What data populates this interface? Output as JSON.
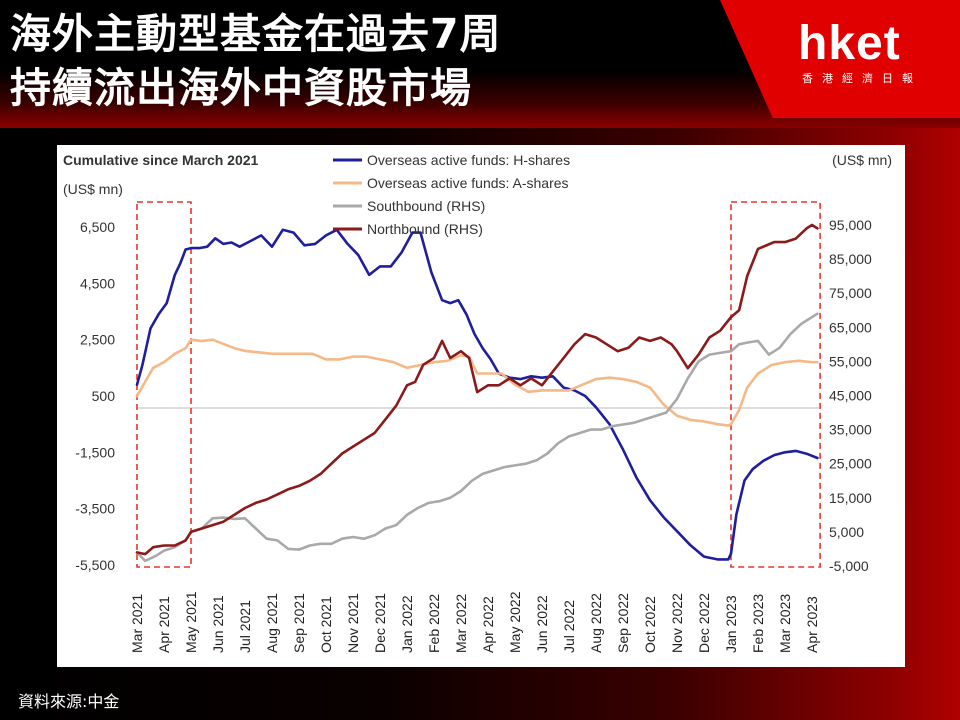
{
  "header": {
    "title_line1": "海外主動型基金在過去7周",
    "title_line2": "持續流出海外中資股市場",
    "logo_text": "hket",
    "logo_subtext": "香港經濟日報"
  },
  "footer": {
    "source": "資料來源:中金"
  },
  "chart_data": {
    "type": "line",
    "title": "Cumulative since March 2021",
    "left_axis_unit": "(US$ mn)",
    "right_axis_unit": "(US$ mn)",
    "left_ylim": [
      -5500,
      7200
    ],
    "right_ylim": [
      -5000,
      100000
    ],
    "left_ticks": [
      6500,
      4500,
      2500,
      500,
      -1500,
      -3500,
      -5500
    ],
    "left_tick_labels": [
      "6,500",
      "4,500",
      "2,500",
      "500",
      "-1,500",
      "-3,500",
      "-5,500"
    ],
    "right_ticks": [
      95000,
      85000,
      75000,
      65000,
      55000,
      45000,
      35000,
      25000,
      15000,
      5000,
      -5000
    ],
    "right_tick_labels": [
      "95,000",
      "85,000",
      "75,000",
      "65,000",
      "55,000",
      "45,000",
      "35,000",
      "25,000",
      "15,000",
      "5,000",
      "-5,000"
    ],
    "x_tick_labels": [
      "Mar 2021",
      "Apr 2021",
      "May 2021",
      "Jun 2021",
      "Jul 2021",
      "Aug 2021",
      "Sep 2021",
      "Oct 2021",
      "Nov 2021",
      "Dec 2021",
      "Jan 2022",
      "Feb 2022",
      "Mar 2022",
      "Apr 2022",
      "May 2022",
      "Jun 2022",
      "Jul 2022",
      "Aug 2022",
      "Sep 2022",
      "Oct 2022",
      "Nov 2022",
      "Dec 2022",
      "Jan 2023",
      "Feb 2023",
      "Mar 2023",
      "Apr 2023"
    ],
    "x_range": [
      0,
      25.3
    ],
    "highlight_periods": [
      [
        0,
        2
      ],
      [
        22,
        25.3
      ]
    ],
    "legend_position": "top-center",
    "series": [
      {
        "name": "Overseas active funds: H-shares",
        "axis": "left",
        "color": "#1f1f9e",
        "x": [
          0,
          0.2,
          0.5,
          0.8,
          1.1,
          1.4,
          1.6,
          1.8,
          2,
          2.3,
          2.6,
          2.9,
          3.2,
          3.5,
          3.8,
          4.2,
          4.6,
          5,
          5.4,
          5.8,
          6.2,
          6.6,
          7,
          7.4,
          7.8,
          8.2,
          8.6,
          9,
          9.4,
          9.8,
          10.2,
          10.5,
          10.9,
          11.3,
          11.6,
          11.9,
          12.2,
          12.5,
          12.8,
          13.1,
          13.4,
          13.8,
          14.2,
          14.6,
          15,
          15.4,
          15.8,
          16.2,
          16.6,
          17,
          17.5,
          18,
          18.5,
          19,
          19.5,
          20,
          20.5,
          21,
          21.5,
          21.9,
          22,
          22.2,
          22.5,
          22.8,
          23.2,
          23.6,
          24,
          24.4,
          24.8,
          25.2
        ],
        "values": [
          900,
          1600,
          2900,
          3400,
          3800,
          4800,
          5200,
          5700,
          5750,
          5750,
          5800,
          6100,
          5900,
          5950,
          5800,
          6000,
          6200,
          5800,
          6400,
          6300,
          5850,
          5900,
          6200,
          6400,
          5900,
          5500,
          4800,
          5100,
          5100,
          5600,
          6300,
          6300,
          4900,
          3900,
          3800,
          3900,
          3400,
          2700,
          2200,
          1800,
          1300,
          1150,
          1100,
          1200,
          1150,
          1200,
          800,
          700,
          500,
          100,
          -500,
          -1400,
          -2400,
          -3200,
          -3800,
          -4300,
          -4800,
          -5200,
          -5300,
          -5300,
          -5100,
          -3700,
          -2500,
          -2100,
          -1800,
          -1600,
          -1500,
          -1450,
          -1550,
          -1700
        ]
      },
      {
        "name": "Overseas active funds: A-shares",
        "axis": "left",
        "color": "#f5b887",
        "x": [
          0,
          0.3,
          0.6,
          1,
          1.4,
          1.8,
          2,
          2.4,
          2.8,
          3.2,
          3.6,
          4,
          4.5,
          5,
          5.5,
          6,
          6.5,
          7,
          7.5,
          8,
          8.5,
          9,
          9.5,
          10,
          10.5,
          11,
          11.5,
          12,
          12.3,
          12.6,
          13,
          13.5,
          14,
          14.5,
          15,
          15.5,
          16,
          16.5,
          17,
          17.5,
          18,
          18.5,
          19,
          19.5,
          20,
          20.5,
          21,
          21.5,
          21.9,
          22,
          22.3,
          22.6,
          23,
          23.5,
          24,
          24.5,
          25,
          25.2
        ],
        "values": [
          500,
          1000,
          1500,
          1700,
          2000,
          2200,
          2500,
          2450,
          2500,
          2350,
          2200,
          2100,
          2050,
          2000,
          2000,
          2000,
          2000,
          1800,
          1800,
          1900,
          1900,
          1800,
          1700,
          1500,
          1600,
          1700,
          1750,
          1950,
          1900,
          1300,
          1300,
          1300,
          900,
          650,
          700,
          700,
          700,
          900,
          1100,
          1150,
          1100,
          1000,
          800,
          200,
          -200,
          -350,
          -400,
          -500,
          -550,
          -500,
          0,
          800,
          1300,
          1600,
          1700,
          1750,
          1700,
          1700
        ]
      },
      {
        "name": "Southbound (RHS)",
        "axis": "right",
        "color": "#a9a9a9",
        "x": [
          0,
          0.3,
          0.7,
          1,
          1.4,
          1.8,
          2,
          2.4,
          2.8,
          3.2,
          3.6,
          4,
          4.4,
          4.8,
          5.2,
          5.6,
          6,
          6.4,
          6.8,
          7.2,
          7.6,
          8,
          8.4,
          8.8,
          9.2,
          9.6,
          10,
          10.4,
          10.8,
          11.2,
          11.6,
          12,
          12.4,
          12.8,
          13.2,
          13.6,
          14,
          14.4,
          14.8,
          15.2,
          15.6,
          16,
          16.4,
          16.8,
          17.2,
          17.6,
          18,
          18.4,
          18.8,
          19.2,
          19.6,
          20,
          20.4,
          20.8,
          21.2,
          21.6,
          22,
          22.3,
          22.6,
          23,
          23.4,
          23.8,
          24.2,
          24.6,
          25,
          25.2
        ],
        "values": [
          -1000,
          -3500,
          -2000,
          -500,
          500,
          2500,
          5000,
          6000,
          9000,
          9200,
          8800,
          9000,
          6000,
          3000,
          2500,
          0,
          -200,
          1000,
          1500,
          1500,
          3000,
          3500,
          3000,
          4000,
          6000,
          7000,
          10000,
          12000,
          13500,
          14000,
          15000,
          17000,
          20000,
          22000,
          23000,
          24000,
          24500,
          25000,
          26000,
          28000,
          31000,
          33000,
          34000,
          35000,
          35000,
          36000,
          36500,
          37000,
          38000,
          39000,
          40000,
          44000,
          50000,
          55000,
          57000,
          57500,
          58000,
          60000,
          60500,
          61000,
          57000,
          59000,
          63000,
          66000,
          68000,
          69000
        ]
      },
      {
        "name": "Northbound (RHS)",
        "axis": "right",
        "color": "#8b1a1a",
        "x": [
          0,
          0.3,
          0.6,
          1,
          1.4,
          1.8,
          2,
          2.4,
          2.8,
          3.2,
          3.6,
          4,
          4.4,
          4.8,
          5.2,
          5.6,
          6,
          6.4,
          6.8,
          7.2,
          7.6,
          8,
          8.4,
          8.8,
          9.2,
          9.6,
          10,
          10.3,
          10.6,
          11,
          11.3,
          11.6,
          12,
          12.3,
          12.6,
          13,
          13.4,
          13.8,
          14.2,
          14.6,
          15,
          15.4,
          15.8,
          16.2,
          16.6,
          17,
          17.4,
          17.8,
          18.2,
          18.6,
          19,
          19.4,
          19.8,
          20,
          20.4,
          20.8,
          21.2,
          21.6,
          22,
          22.3,
          22.6,
          23,
          23.3,
          23.6,
          24,
          24.4,
          24.8,
          25,
          25.2
        ],
        "values": [
          -1000,
          -1500,
          500,
          1000,
          1000,
          2500,
          5000,
          6000,
          7000,
          8000,
          10000,
          12000,
          13500,
          14500,
          16000,
          17500,
          18500,
          20000,
          22000,
          25000,
          28000,
          30000,
          32000,
          34000,
          38000,
          42000,
          48000,
          49000,
          54000,
          56000,
          61000,
          56000,
          58000,
          56000,
          46000,
          48000,
          48000,
          50000,
          48000,
          50000,
          48000,
          52000,
          56000,
          60000,
          63000,
          62000,
          60000,
          58000,
          59000,
          62000,
          61000,
          62000,
          60000,
          58000,
          53000,
          57000,
          62000,
          64000,
          68000,
          70000,
          80000,
          88000,
          89000,
          90000,
          90000,
          91000,
          94000,
          95000,
          94000
        ]
      }
    ]
  }
}
